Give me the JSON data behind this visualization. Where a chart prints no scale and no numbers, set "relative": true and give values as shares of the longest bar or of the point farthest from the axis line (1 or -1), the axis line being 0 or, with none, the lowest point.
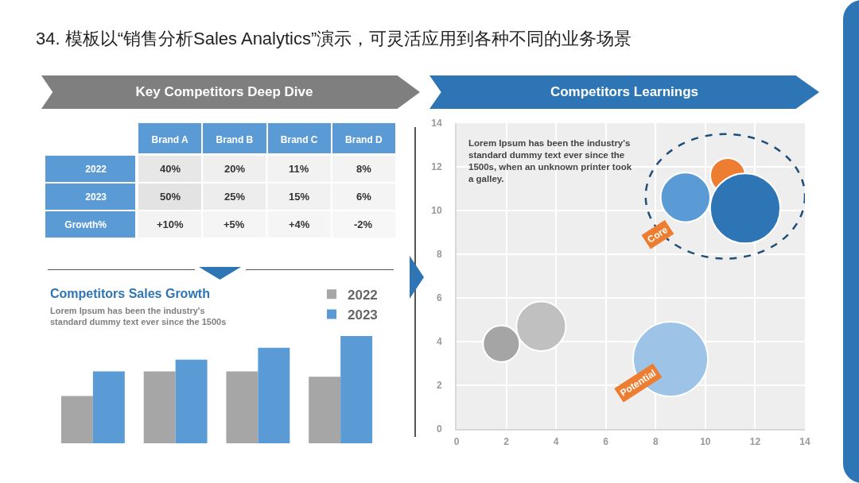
{
  "chart_data": [
    {
      "type": "heatmap",
      "title": "34. 模板以“销售分析Sales Analytics”演示，可灵活应用到各种不同的业务场景",
      "subtitle": "Key Competitors Deep Dive",
      "categories": [
        "Brand A",
        "Brand B",
        "Brand C",
        "Brand D"
      ],
      "y_categories": [
        "2022",
        "2023",
        "Growth%"
      ],
      "cells": [
        [
          40,
          20,
          11,
          8
        ],
        [
          50,
          25,
          15,
          6
        ],
        [
          10,
          5,
          4,
          -2
        ]
      ],
      "cell_labels": [
        [
          "40%",
          "20%",
          "11%",
          "8%"
        ],
        [
          "50%",
          "25%",
          "15%",
          "6%"
        ],
        [
          "+10%",
          "+5%",
          "+4%",
          "-2%"
        ]
      ]
    },
    {
      "type": "bar",
      "title": "Competitors Sales Growth",
      "subtitle": "Lorem Ipsum has been the industry's standard dummy text ever since the 1500s",
      "relative": true,
      "categories": [
        null,
        null,
        null,
        null
      ],
      "series": [
        {
          "name": "2022",
          "color": "#a6a6a6",
          "values": [
            0.44,
            0.67,
            0.67,
            0.62
          ]
        },
        {
          "name": "2023",
          "color": "#5b9bd5",
          "values": [
            0.67,
            0.78,
            0.89,
            1
          ]
        }
      ],
      "legend": "top right",
      "grid": false
    },
    {
      "type": "bubble",
      "title": "Competitors Learnings",
      "x": [
        1.8,
        3.4,
        8.6,
        9.2,
        10.9,
        11.6
      ],
      "values": [
        3.9,
        4.7,
        3.2,
        10.6,
        11.6,
        10.1
      ],
      "sizes": [
        0.24,
        0.44,
        1,
        0.44,
        0.22,
        0.88
      ],
      "colors": [
        "#a5a5a5",
        "#c0c0c0",
        "#9dc3e6",
        "#5b9bd5",
        "#ed7d31",
        "#2e75b6"
      ],
      "xlim": [
        0,
        14
      ],
      "xticks": [
        0,
        2,
        4,
        6,
        8,
        10,
        12,
        14
      ],
      "ylim": [
        0,
        14
      ],
      "yticks": [
        0,
        2,
        4,
        6,
        8,
        10,
        12,
        14
      ],
      "grid": true,
      "annotations": [
        "Lorem Ipsum has been the industry's standard dummy text ever since the 1500s, when an unknown printer took a galley.",
        "Core",
        "Potential"
      ]
    }
  ]
}
